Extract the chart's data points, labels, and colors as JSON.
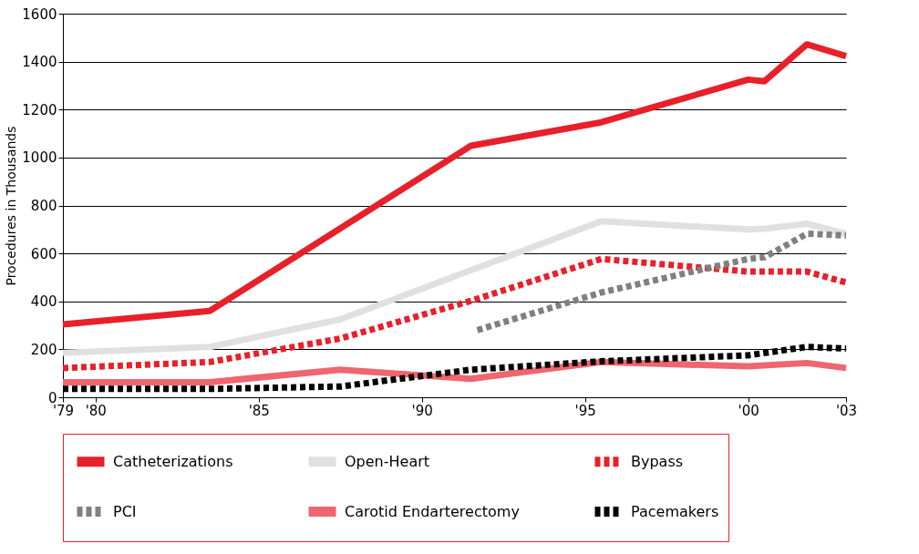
{
  "chart_data": {
    "type": "line",
    "ylabel": "Procedures in Thousands",
    "xlim": [
      1979,
      2003
    ],
    "xticks": [
      {
        "value": 1979,
        "label": "'79"
      },
      {
        "value": 1980,
        "label": "'80"
      },
      {
        "value": 1985,
        "label": "'85"
      },
      {
        "value": 1990,
        "label": "'90"
      },
      {
        "value": 1995,
        "label": "'95"
      },
      {
        "value": 2000,
        "label": "'00"
      },
      {
        "value": 2003,
        "label": "'03"
      }
    ],
    "ylim": [
      0,
      1600
    ],
    "yticks": [
      0,
      200,
      400,
      600,
      800,
      1000,
      1200,
      1400,
      1600
    ],
    "grid": "y",
    "legend": "bottom",
    "marker": "none",
    "series": [
      {
        "name": "Catheterizations",
        "color": "#e8202a",
        "line_style": "solid",
        "x": [
          1979,
          1983.5,
          1991.5,
          1995.5,
          2000,
          2000.5,
          2001.8,
          2003
        ],
        "values": [
          304,
          360,
          1049,
          1147,
          1325,
          1318,
          1472,
          1423
        ]
      },
      {
        "name": "Open-Heart",
        "color": "#e0e0e0",
        "line_style": "solid",
        "x": [
          1979,
          1983.5,
          1987.5,
          1995.5,
          2000,
          2000.5,
          2001.8,
          2003
        ],
        "values": [
          185,
          210,
          325,
          734,
          700,
          703,
          724,
          682
        ]
      },
      {
        "name": "Bypass",
        "color": "#e8202a",
        "line_style": "dashed",
        "x": [
          1979,
          1983.5,
          1987.5,
          1991.5,
          1995.5,
          2000,
          2001.8,
          2003
        ],
        "values": [
          122,
          147,
          245,
          402,
          577,
          524,
          524,
          479
        ]
      },
      {
        "name": "PCI",
        "color": "#808080",
        "line_style": "dashed",
        "x": [
          1991.7,
          1995.5,
          2000,
          2000.5,
          2001.8,
          2003
        ],
        "values": [
          280,
          437,
          577,
          584,
          682,
          675
        ]
      },
      {
        "name": "Carotid Endarterectomy",
        "color": "#ee6670",
        "line_style": "solid",
        "x": [
          1979,
          1983.5,
          1987.5,
          1991.5,
          1995.5,
          2000,
          2001.8,
          2003
        ],
        "values": [
          63,
          63,
          115,
          77,
          147,
          129,
          143,
          122
        ]
      },
      {
        "name": "Pacemakers",
        "color": "#000000",
        "line_style": "dashed",
        "x": [
          1979,
          1983.5,
          1987.5,
          1991.5,
          1995.5,
          2000,
          2001.8,
          2003
        ],
        "values": [
          35,
          35,
          45,
          115,
          150,
          175,
          210,
          203
        ]
      }
    ]
  }
}
